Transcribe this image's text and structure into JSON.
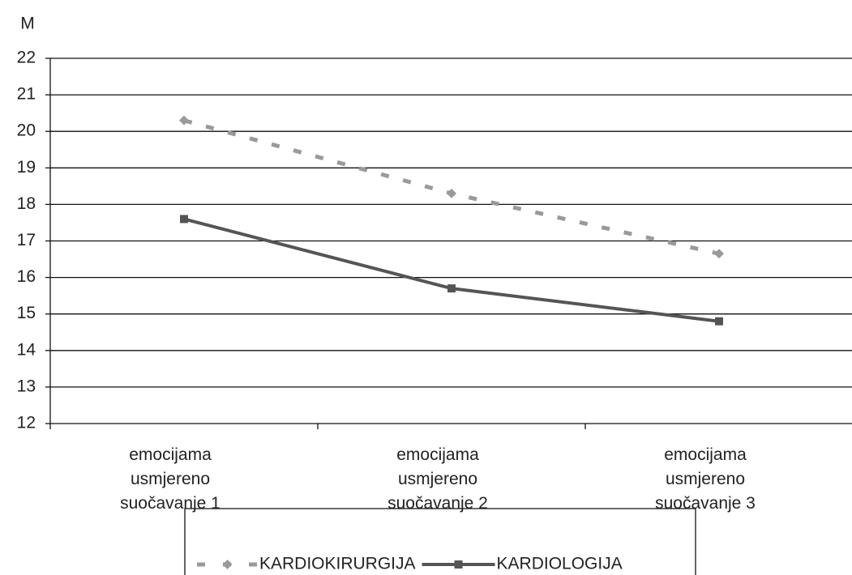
{
  "chart_data": {
    "type": "line",
    "y_label": "M",
    "categories": [
      "emocijama usmjereno suočavanje 1",
      "emocijama usmjereno suočavanje 2",
      "emocijama usmjereno suočavanje 3"
    ],
    "series": [
      {
        "name": "KARDIOKIRURGIJA",
        "color": "#9a9a9a",
        "dashed": true,
        "marker": "diamond",
        "values": [
          20.3,
          18.3,
          16.65
        ]
      },
      {
        "name": "KARDIOLOGIJA",
        "color": "#555555",
        "dashed": false,
        "marker": "square",
        "values": [
          17.6,
          15.7,
          14.8
        ]
      }
    ],
    "ylim": [
      12,
      22
    ],
    "yticks": [
      12,
      13,
      14,
      15,
      16,
      17,
      18,
      19,
      20,
      21,
      22
    ],
    "grid": true
  }
}
